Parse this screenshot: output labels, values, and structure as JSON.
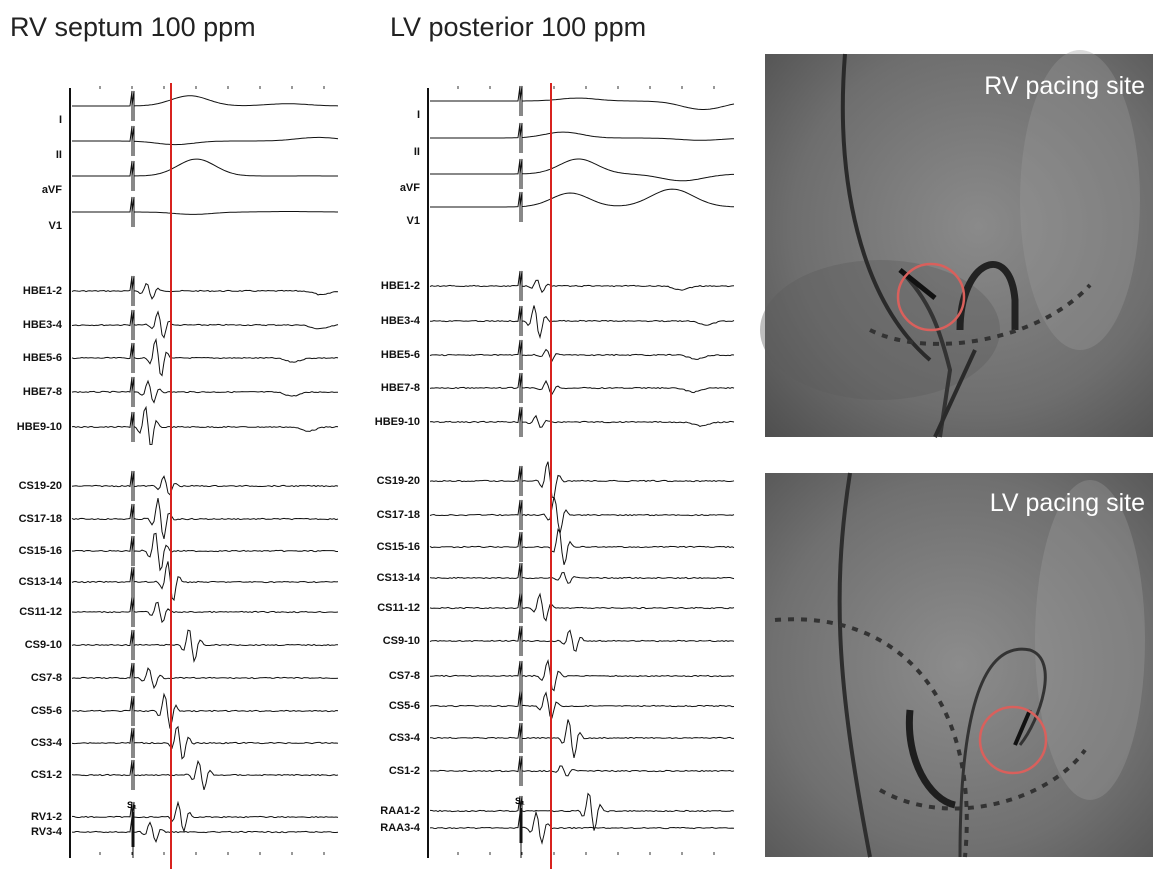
{
  "panels": [
    {
      "title": "RV septum 100 ppm",
      "stim_label": "S₁",
      "channels": [
        "I",
        "II",
        "aVF",
        "V1",
        "HBE1-2",
        "HBE3-4",
        "HBE5-6",
        "HBE7-8",
        "HBE9-10",
        "CS19-20",
        "CS17-18",
        "CS15-16",
        "CS13-14",
        "CS11-12",
        "CS9-10",
        "CS7-8",
        "CS5-6",
        "CS3-4",
        "CS1-2",
        "RV1-2",
        "RV3-4"
      ]
    },
    {
      "title": "LV posterior 100 ppm",
      "stim_label": "S₁",
      "channels": [
        "I",
        "II",
        "aVF",
        "V1",
        "HBE1-2",
        "HBE3-4",
        "HBE5-6",
        "HBE7-8",
        "HBE9-10",
        "CS19-20",
        "CS17-18",
        "CS15-16",
        "CS13-14",
        "CS11-12",
        "CS9-10",
        "CS7-8",
        "CS5-6",
        "CS3-4",
        "CS1-2",
        "RAA1-2",
        "RAA3-4"
      ]
    }
  ],
  "images": [
    {
      "label": "RV pacing site"
    },
    {
      "label": "LV pacing site"
    }
  ]
}
